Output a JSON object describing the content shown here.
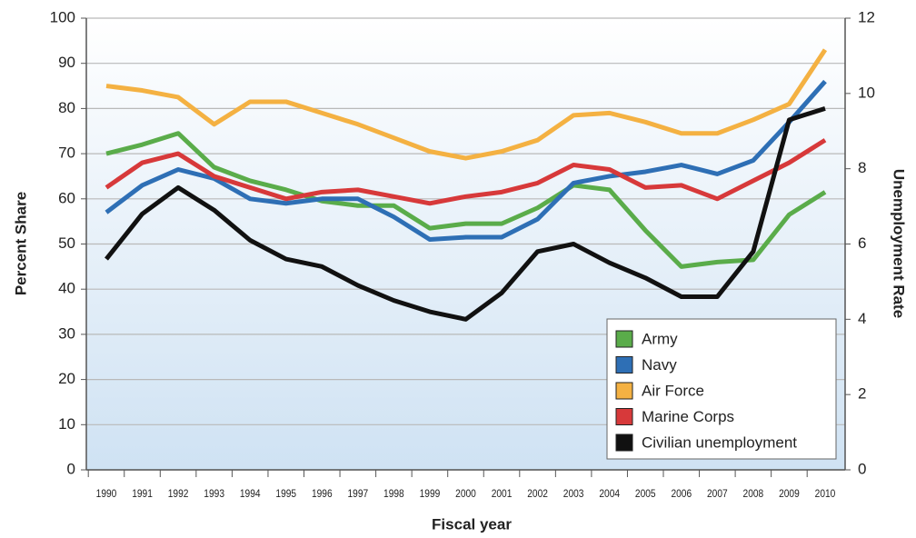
{
  "chart_data": {
    "type": "line",
    "x_label": "Fiscal year",
    "y_label": "Percent Share",
    "y2_label": "Unemployment Rate",
    "categories": [
      "1990",
      "1991",
      "1992",
      "1993",
      "1994",
      "1995",
      "1996",
      "1997",
      "1998",
      "1999",
      "2000",
      "2001",
      "2002",
      "2003",
      "2004",
      "2005",
      "2006",
      "2007",
      "2008",
      "2009",
      "2010"
    ],
    "series": [
      {
        "name": "Army",
        "color": "#5aac4a",
        "values": [
          70,
          72,
          74.5,
          67,
          64,
          62,
          59.5,
          58.5,
          58.5,
          53.5,
          54.5,
          54.5,
          58,
          63,
          62,
          53,
          45,
          46,
          46.5,
          56.5,
          61.5
        ]
      },
      {
        "name": "Navy",
        "color": "#2e6fb5",
        "values": [
          57,
          63,
          66.5,
          64.5,
          60,
          59,
          60,
          60,
          56,
          51,
          51.5,
          51.5,
          55.5,
          63.5,
          65,
          66,
          67.5,
          65.5,
          68.5,
          77,
          86
        ]
      },
      {
        "name": "Air Force",
        "color": "#f4b142",
        "values": [
          85,
          84,
          82.5,
          76.5,
          81.5,
          81.5,
          79,
          76.5,
          73.5,
          70.5,
          69,
          70.5,
          73,
          78.5,
          79,
          77,
          74.5,
          74.5,
          77.5,
          81,
          93
        ]
      },
      {
        "name": "Marine Corps",
        "color": "#d7393a",
        "values": [
          62.5,
          68,
          70,
          65,
          62.5,
          60,
          61.5,
          62,
          60.5,
          59,
          60.5,
          61.5,
          63.5,
          67.5,
          66.5,
          62.5,
          63,
          60,
          64,
          68,
          73
        ]
      },
      {
        "name": "Civilian unemployment",
        "color": "#111111",
        "axis": "y2",
        "values": [
          5.6,
          6.8,
          7.5,
          6.9,
          6.1,
          5.6,
          5.4,
          4.9,
          4.5,
          4.2,
          4.0,
          4.7,
          5.8,
          6.0,
          5.5,
          5.1,
          4.6,
          4.6,
          5.8,
          9.3,
          9.6
        ]
      }
    ],
    "ylim": [
      0,
      100
    ],
    "yticks": [
      0,
      10,
      20,
      30,
      40,
      50,
      60,
      70,
      80,
      90,
      100
    ],
    "y2lim": [
      0,
      12
    ],
    "y2ticks": [
      0,
      2,
      4,
      6,
      8,
      10,
      12
    ],
    "grid": true,
    "legend": "lower right"
  }
}
